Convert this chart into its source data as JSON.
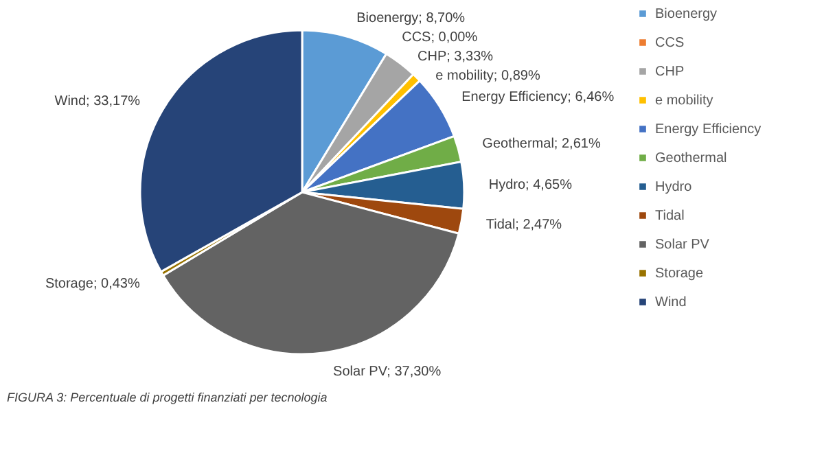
{
  "chart_data": {
    "type": "pie",
    "title": "FIGURA 3: Percentuale  di progetti finanziati per tecnologia",
    "categories": [
      "Bioenergy",
      "CCS",
      "CHP",
      "e mobility",
      "Energy Efficiency",
      "Geothermal",
      "Hydro",
      "Tidal",
      "Solar PV",
      "Storage",
      "Wind"
    ],
    "values": [
      8.7,
      0.0,
      3.33,
      0.89,
      6.46,
      2.61,
      4.65,
      2.47,
      37.3,
      0.43,
      33.17
    ],
    "colors": [
      "#5b9bd5",
      "#ed7d31",
      "#a5a5a5",
      "#ffc000",
      "#4472c4",
      "#70ad47",
      "#255e91",
      "#9e480e",
      "#636363",
      "#997300",
      "#264478"
    ],
    "value_labels": [
      "Bioenergy; 8,70%",
      "CCS; 0,00%",
      "CHP; 3,33%",
      "e mobility; 0,89%",
      "Energy Efficiency; 6,46%",
      "Geothermal; 2,61%",
      "Hydro; 4,65%",
      "Tidal; 2,47%",
      "Solar PV; 37,30%",
      "Storage; 0,43%",
      "Wind; 33,17%"
    ],
    "legend": "right"
  }
}
